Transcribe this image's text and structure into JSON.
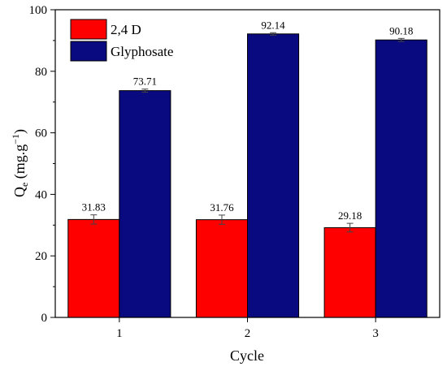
{
  "chart_data": {
    "type": "bar",
    "categories": [
      "1",
      "2",
      "3"
    ],
    "series": [
      {
        "name": "2,4 D",
        "color": "#ff0000",
        "values": [
          31.83,
          31.76,
          29.18
        ],
        "labels": [
          "31.83",
          "31.76",
          "29.18"
        ],
        "errors": [
          1.5,
          1.5,
          1.4
        ]
      },
      {
        "name": "Glyphosate",
        "color": "#0a0a80",
        "values": [
          73.71,
          92.14,
          90.18
        ],
        "labels": [
          "73.71",
          "92.14",
          "90.18"
        ],
        "errors": [
          0.5,
          0.4,
          0.5
        ]
      }
    ],
    "xlabel": "Cycle",
    "ylabel_main": "Q",
    "ylabel_sub": "e",
    "ylabel_unit": " (mg.g",
    "ylabel_exp": "−1",
    "ylabel_close": ")",
    "ylim": [
      0,
      100
    ],
    "yticks": [
      0,
      20,
      40,
      60,
      80,
      100
    ],
    "grid": false,
    "legend_position": "top-left"
  }
}
